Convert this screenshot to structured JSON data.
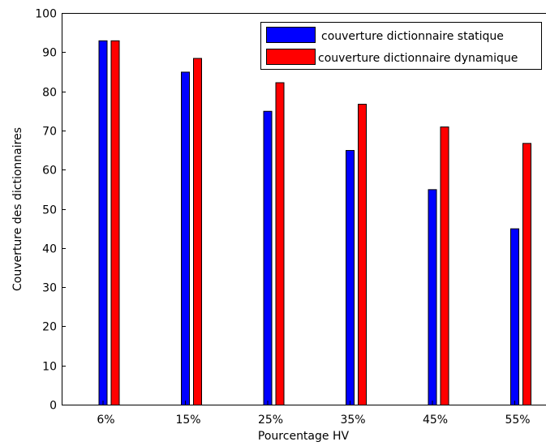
{
  "chart_data": {
    "type": "bar",
    "categories": [
      "6%",
      "15%",
      "25%",
      "35%",
      "45%",
      "55%"
    ],
    "series": [
      {
        "name": "couverture dictionnaire statique",
        "color": "#0000ff",
        "values": [
          93,
          85,
          75,
          65,
          55,
          45
        ]
      },
      {
        "name": "couverture dictionnaire dynamique",
        "color": "#ff0000",
        "values": [
          93,
          88.5,
          82.3,
          76.8,
          71,
          66.8
        ]
      }
    ],
    "xlabel": "Pourcentage HV",
    "ylabel": "Couverture des dictionnaires",
    "ylim": [
      0,
      100
    ],
    "yticks": [
      "0",
      "10",
      "20",
      "30",
      "40",
      "50",
      "60",
      "70",
      "80",
      "90",
      "100"
    ],
    "grid": false,
    "legend_position": "top-right"
  }
}
